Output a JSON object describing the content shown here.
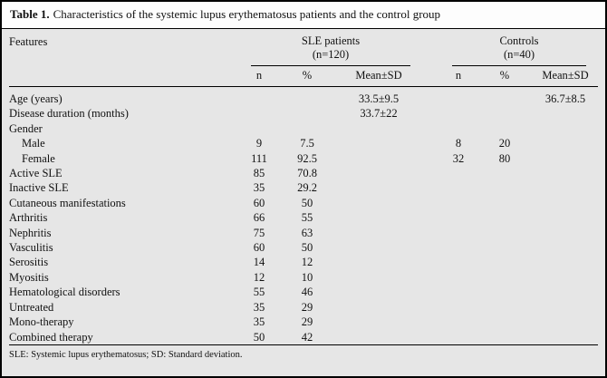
{
  "title": {
    "label": "Table 1.",
    "caption": "Characteristics of the systemic lupus erythematosus patients and the control group"
  },
  "header": {
    "features": "Features",
    "groups": [
      {
        "name": "SLE patients",
        "n_label": "(n=120)"
      },
      {
        "name": "Controls",
        "n_label": "(n=40)"
      }
    ],
    "subcolumns": {
      "n": "n",
      "pct": "%",
      "mean": "Mean±SD"
    }
  },
  "rows": [
    {
      "feature": "Age (years)",
      "indent": false,
      "sle": {
        "n": "",
        "pct": "",
        "mean": "33.5±9.5"
      },
      "controls": {
        "n": "",
        "pct": "",
        "mean": "36.7±8.5"
      }
    },
    {
      "feature": "Disease duration (months)",
      "indent": false,
      "sle": {
        "n": "",
        "pct": "",
        "mean": "33.7±22"
      },
      "controls": {
        "n": "",
        "pct": "",
        "mean": ""
      }
    },
    {
      "feature": "Gender",
      "indent": false,
      "sle": {
        "n": "",
        "pct": "",
        "mean": ""
      },
      "controls": {
        "n": "",
        "pct": "",
        "mean": ""
      }
    },
    {
      "feature": "Male",
      "indent": true,
      "sle": {
        "n": "9",
        "pct": "7.5",
        "mean": ""
      },
      "controls": {
        "n": "8",
        "pct": "20",
        "mean": ""
      }
    },
    {
      "feature": "Female",
      "indent": true,
      "sle": {
        "n": "111",
        "pct": "92.5",
        "mean": ""
      },
      "controls": {
        "n": "32",
        "pct": "80",
        "mean": ""
      }
    },
    {
      "feature": "Active SLE",
      "indent": false,
      "sle": {
        "n": "85",
        "pct": "70.8",
        "mean": ""
      },
      "controls": {
        "n": "",
        "pct": "",
        "mean": ""
      }
    },
    {
      "feature": "Inactive SLE",
      "indent": false,
      "sle": {
        "n": "35",
        "pct": "29.2",
        "mean": ""
      },
      "controls": {
        "n": "",
        "pct": "",
        "mean": ""
      }
    },
    {
      "feature": "Cutaneous manifestations",
      "indent": false,
      "sle": {
        "n": "60",
        "pct": "50",
        "mean": ""
      },
      "controls": {
        "n": "",
        "pct": "",
        "mean": ""
      }
    },
    {
      "feature": "Arthritis",
      "indent": false,
      "sle": {
        "n": "66",
        "pct": "55",
        "mean": ""
      },
      "controls": {
        "n": "",
        "pct": "",
        "mean": ""
      }
    },
    {
      "feature": "Nephritis",
      "indent": false,
      "sle": {
        "n": "75",
        "pct": "63",
        "mean": ""
      },
      "controls": {
        "n": "",
        "pct": "",
        "mean": ""
      }
    },
    {
      "feature": "Vasculitis",
      "indent": false,
      "sle": {
        "n": "60",
        "pct": "50",
        "mean": ""
      },
      "controls": {
        "n": "",
        "pct": "",
        "mean": ""
      }
    },
    {
      "feature": "Serositis",
      "indent": false,
      "sle": {
        "n": "14",
        "pct": "12",
        "mean": ""
      },
      "controls": {
        "n": "",
        "pct": "",
        "mean": ""
      }
    },
    {
      "feature": "Myositis",
      "indent": false,
      "sle": {
        "n": "12",
        "pct": "10",
        "mean": ""
      },
      "controls": {
        "n": "",
        "pct": "",
        "mean": ""
      }
    },
    {
      "feature": "Hematological disorders",
      "indent": false,
      "sle": {
        "n": "55",
        "pct": "46",
        "mean": ""
      },
      "controls": {
        "n": "",
        "pct": "",
        "mean": ""
      }
    },
    {
      "feature": "Untreated",
      "indent": false,
      "sle": {
        "n": "35",
        "pct": "29",
        "mean": ""
      },
      "controls": {
        "n": "",
        "pct": "",
        "mean": ""
      }
    },
    {
      "feature": "Mono-therapy",
      "indent": false,
      "sle": {
        "n": "35",
        "pct": "29",
        "mean": ""
      },
      "controls": {
        "n": "",
        "pct": "",
        "mean": ""
      }
    },
    {
      "feature": "Combined therapy",
      "indent": false,
      "sle": {
        "n": "50",
        "pct": "42",
        "mean": ""
      },
      "controls": {
        "n": "",
        "pct": "",
        "mean": ""
      }
    }
  ],
  "footnote": "SLE: Systemic lupus erythematosus; SD: Standard deviation."
}
